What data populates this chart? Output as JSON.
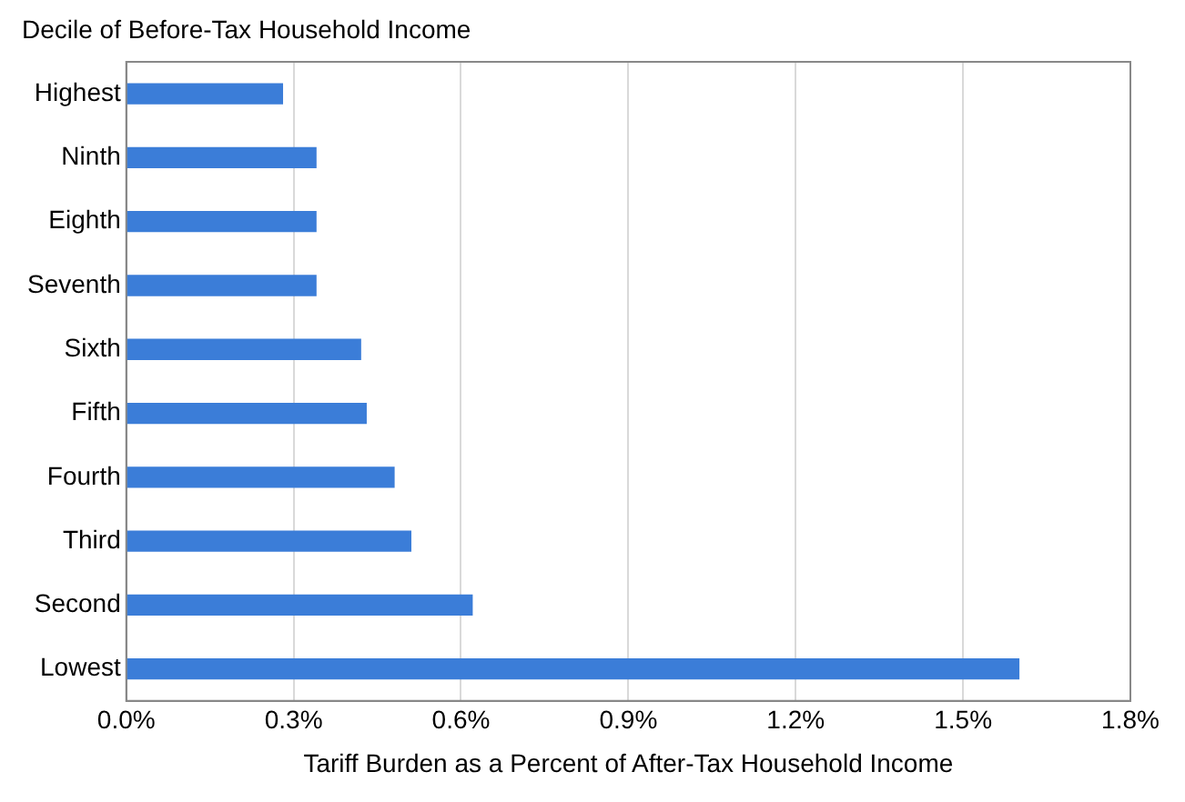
{
  "chart_data": {
    "type": "bar",
    "orientation": "horizontal",
    "ylabel": "Decile of Before-Tax Household Income",
    "xlabel": "Tariff Burden as a Percent of After-Tax Household Income",
    "categories": [
      "Highest",
      "Ninth",
      "Eighth",
      "Seventh",
      "Sixth",
      "Fifth",
      "Fourth",
      "Third",
      "Second",
      "Lowest"
    ],
    "values": [
      0.28,
      0.34,
      0.34,
      0.34,
      0.42,
      0.43,
      0.48,
      0.51,
      0.62,
      1.6
    ],
    "color": "#3b7dd8",
    "xlim": [
      0,
      1.8
    ],
    "xticks": [
      {
        "value": 0,
        "label": "0.0%"
      },
      {
        "value": 0.3,
        "label": "0.3%"
      },
      {
        "value": 0.6,
        "label": "0.6%"
      },
      {
        "value": 0.9,
        "label": "0.9%"
      },
      {
        "value": 1.2,
        "label": "1.2%"
      },
      {
        "value": 1.5,
        "label": "1.5%"
      },
      {
        "value": 1.8,
        "label": "1.8%"
      }
    ],
    "grid": "x",
    "legend": false
  }
}
